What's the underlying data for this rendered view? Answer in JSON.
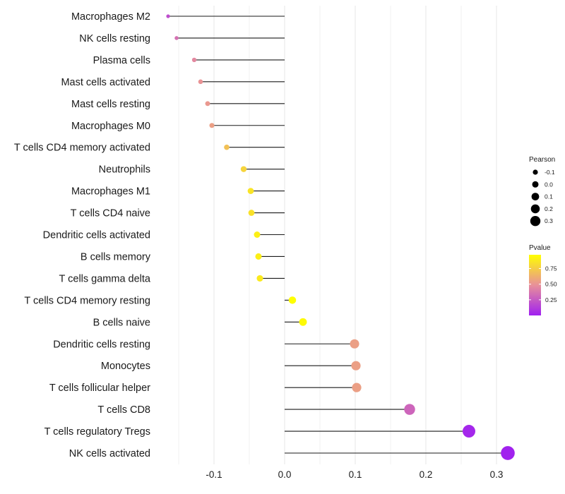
{
  "chart_data": {
    "type": "lollipop",
    "title": "",
    "xlabel": "",
    "ylabel": "",
    "xlim": [
      -0.175,
      0.335
    ],
    "x_ticks": [
      -0.1,
      0.0,
      0.1,
      0.2,
      0.3
    ],
    "x_tick_labels": [
      "-0.1",
      "0.0",
      "0.1",
      "0.2",
      "0.3"
    ],
    "categories": [
      "Macrophages M2",
      "NK cells resting",
      "Plasma cells",
      "Mast cells activated",
      "Mast cells resting",
      "Macrophages M0",
      "T cells CD4 memory activated",
      "Neutrophils",
      "Macrophages M1",
      "T cells CD4 naive",
      "Dendritic cells activated",
      "B cells memory",
      "T cells gamma delta",
      "T cells CD4 memory resting",
      "B cells naive",
      "Dendritic cells resting",
      "Monocytes",
      "T cells follicular helper",
      "T cells CD8",
      "T cells regulatory  Tregs",
      "NK cells activated"
    ],
    "pearson": [
      -0.165,
      -0.153,
      -0.128,
      -0.119,
      -0.109,
      -0.103,
      -0.082,
      -0.058,
      -0.048,
      -0.047,
      -0.039,
      -0.037,
      -0.035,
      0.011,
      0.026,
      0.099,
      0.101,
      0.102,
      0.177,
      0.261,
      0.316
    ],
    "pvalue": [
      0.2,
      0.35,
      0.45,
      0.5,
      0.52,
      0.55,
      0.7,
      0.78,
      0.85,
      0.84,
      0.9,
      0.9,
      0.88,
      0.99,
      0.95,
      0.55,
      0.55,
      0.55,
      0.3,
      0.03,
      0.01
    ],
    "size_legend": {
      "title": "Pearson",
      "values": [
        -0.1,
        0.0,
        0.1,
        0.2,
        0.3
      ],
      "labels": [
        "-0.1",
        "0.0",
        "0.1",
        "0.2",
        "0.3"
      ]
    },
    "color_legend": {
      "title": "Pvalue",
      "range": [
        0.0,
        0.97
      ],
      "ticks": [
        0.25,
        0.5,
        0.75
      ],
      "tick_labels": [
        "0.25",
        "0.50",
        "0.75"
      ],
      "colors": [
        "#a020f0",
        "#e8909a",
        "#ffff00"
      ]
    },
    "grid": true
  },
  "colors": {
    "stem": "#1a1a1a",
    "grid": "#ebebeb"
  }
}
